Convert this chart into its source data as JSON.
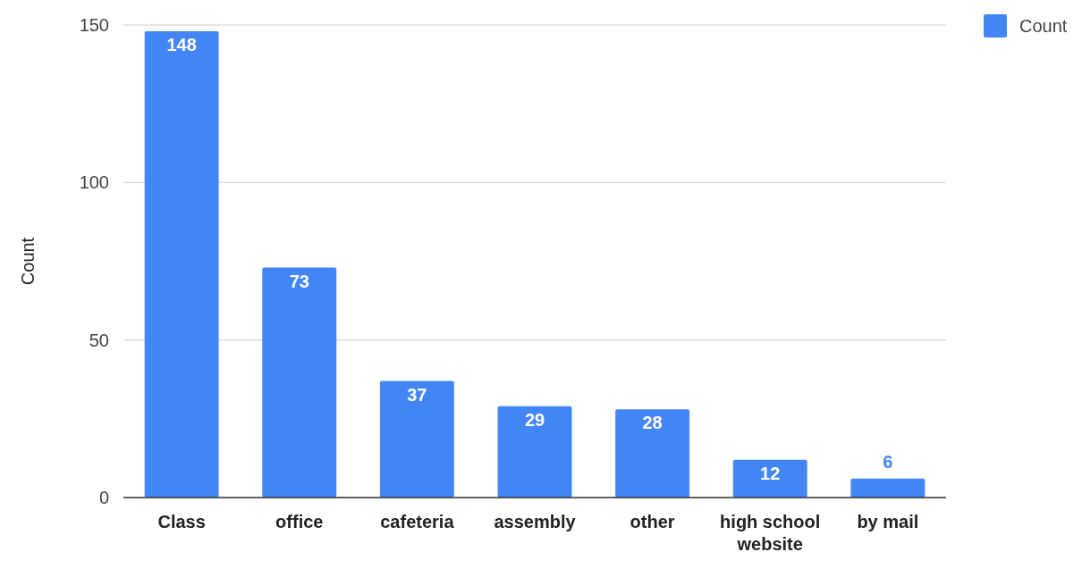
{
  "chart_data": {
    "type": "bar",
    "ylabel": "Count",
    "categories": [
      "Class",
      "office",
      "cafeteria",
      "assembly",
      "other",
      "high school website",
      "by mail"
    ],
    "series": [
      {
        "name": "Count",
        "color": "#4285f4",
        "values": [
          148,
          73,
          37,
          29,
          28,
          12,
          6
        ]
      }
    ],
    "ylim": [
      0,
      150
    ],
    "yticks": [
      0,
      50,
      100,
      150
    ],
    "grid": "y",
    "legend": "top right",
    "data_labels": true
  }
}
